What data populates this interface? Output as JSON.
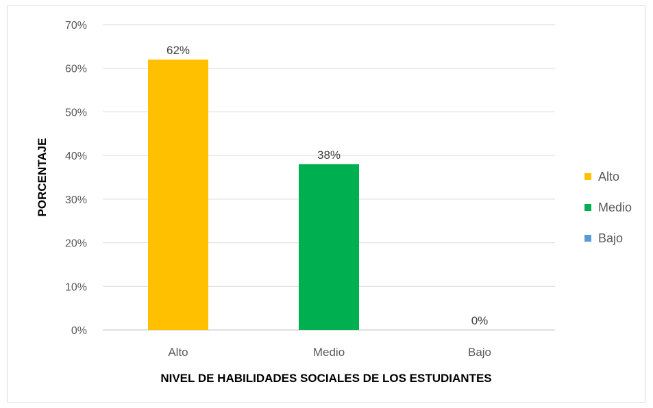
{
  "chart_data": {
    "type": "bar",
    "categories": [
      "Alto",
      "Medio",
      "Bajo"
    ],
    "values": [
      62,
      38,
      0
    ],
    "data_labels": [
      "62%",
      "38%",
      "0%"
    ],
    "colors": [
      "#FFC000",
      "#00B050",
      "#5B9BD5"
    ],
    "title": "",
    "xlabel": "NIVEL DE HABILIDADES SOCIALES DE LOS ESTUDIANTES",
    "ylabel": "PORCENTAJE",
    "ylim": [
      0,
      70
    ],
    "yticks": [
      0,
      10,
      20,
      30,
      40,
      50,
      60,
      70
    ],
    "ytick_labels": [
      "0%",
      "10%",
      "20%",
      "30%",
      "40%",
      "50%",
      "60%",
      "70%"
    ],
    "grid": true,
    "legend": {
      "position": "right",
      "entries": [
        "Alto",
        "Medio",
        "Bajo"
      ]
    }
  }
}
